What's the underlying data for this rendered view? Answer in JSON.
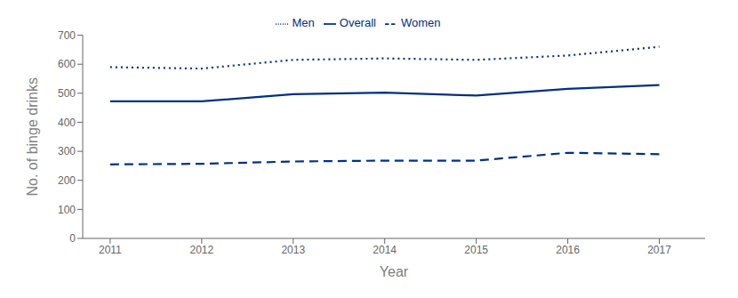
{
  "chart_data": {
    "type": "line",
    "x": [
      2011,
      2012,
      2013,
      2014,
      2015,
      2016,
      2017
    ],
    "xlim": [
      2010.7,
      2017.5
    ],
    "xticks": [
      2011,
      2012,
      2013,
      2014,
      2015,
      2016,
      2017
    ],
    "ylim": [
      0,
      700
    ],
    "yticks": [
      0,
      100,
      200,
      300,
      400,
      500,
      600,
      700
    ],
    "xlabel": "Year",
    "ylabel": "No. of binge drinks",
    "grid": false,
    "legend": "top",
    "series": [
      {
        "name": "Men",
        "color": "#003087",
        "line_style": "dotted",
        "values": [
          590,
          585,
          615,
          620,
          615,
          630,
          660
        ]
      },
      {
        "name": "Women",
        "color": "#003087",
        "line_style": "dashed",
        "values": [
          255,
          257,
          265,
          268,
          268,
          295,
          290
        ]
      },
      {
        "name": "Overall",
        "color": "#003087",
        "line_style": "solid",
        "values": [
          472,
          472,
          497,
          502,
          492,
          515,
          528
        ]
      }
    ]
  }
}
